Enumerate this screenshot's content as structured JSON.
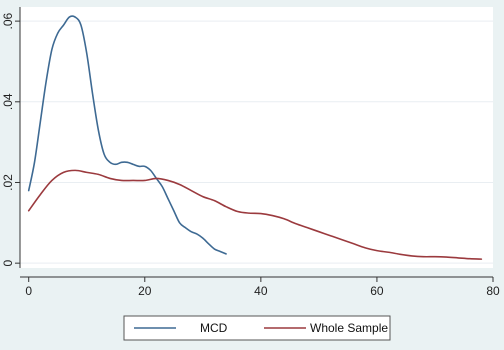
{
  "chart_data": {
    "type": "line",
    "title": "",
    "xlabel": "",
    "ylabel": "",
    "xlim": [
      -1.5,
      80
    ],
    "ylim": [
      -0.0012,
      0.0635
    ],
    "x_ticks": [
      0,
      20,
      40,
      60,
      80
    ],
    "x_tick_labels": [
      "0",
      "20",
      "40",
      "60",
      "80"
    ],
    "y_ticks": [
      0,
      0.02,
      0.04,
      0.06
    ],
    "y_tick_labels": [
      "0",
      ".02",
      ".04",
      ".06"
    ],
    "grid": "horizontal",
    "legend_position": "bottom",
    "series": [
      {
        "name": "MCD",
        "color": "#3e6a93",
        "x": [
          0,
          1,
          2,
          3,
          4,
          5,
          6,
          7,
          8,
          9,
          10,
          11,
          12,
          13,
          14,
          15,
          16,
          17,
          18,
          19,
          20,
          21,
          22,
          23,
          24,
          25,
          26,
          27,
          28,
          29,
          30,
          31,
          32,
          33,
          34
        ],
        "values": [
          0.018,
          0.025,
          0.035,
          0.045,
          0.053,
          0.057,
          0.059,
          0.061,
          0.061,
          0.059,
          0.052,
          0.042,
          0.033,
          0.027,
          0.025,
          0.0245,
          0.025,
          0.025,
          0.0245,
          0.024,
          0.024,
          0.023,
          0.021,
          0.019,
          0.016,
          0.013,
          0.01,
          0.0088,
          0.0078,
          0.0072,
          0.0062,
          0.0048,
          0.0035,
          0.0029,
          0.0023
        ]
      },
      {
        "name": "Whole Sample",
        "color": "#9b3a3e",
        "x": [
          0,
          2,
          4,
          6,
          8,
          10,
          12,
          14,
          16,
          18,
          20,
          22,
          24,
          26,
          28,
          30,
          32,
          34,
          36,
          38,
          40,
          42,
          44,
          46,
          48,
          50,
          52,
          54,
          56,
          58,
          60,
          62,
          64,
          66,
          68,
          70,
          72,
          74,
          76,
          78
        ],
        "values": [
          0.013,
          0.017,
          0.0205,
          0.0225,
          0.023,
          0.0225,
          0.022,
          0.021,
          0.0205,
          0.0205,
          0.0205,
          0.021,
          0.0205,
          0.0195,
          0.018,
          0.0165,
          0.0155,
          0.014,
          0.0128,
          0.0124,
          0.0123,
          0.0118,
          0.011,
          0.0098,
          0.0088,
          0.0078,
          0.0068,
          0.0058,
          0.0048,
          0.0038,
          0.0031,
          0.0027,
          0.0022,
          0.0018,
          0.0016,
          0.0016,
          0.0015,
          0.0013,
          0.0011,
          0.001
        ]
      }
    ]
  }
}
